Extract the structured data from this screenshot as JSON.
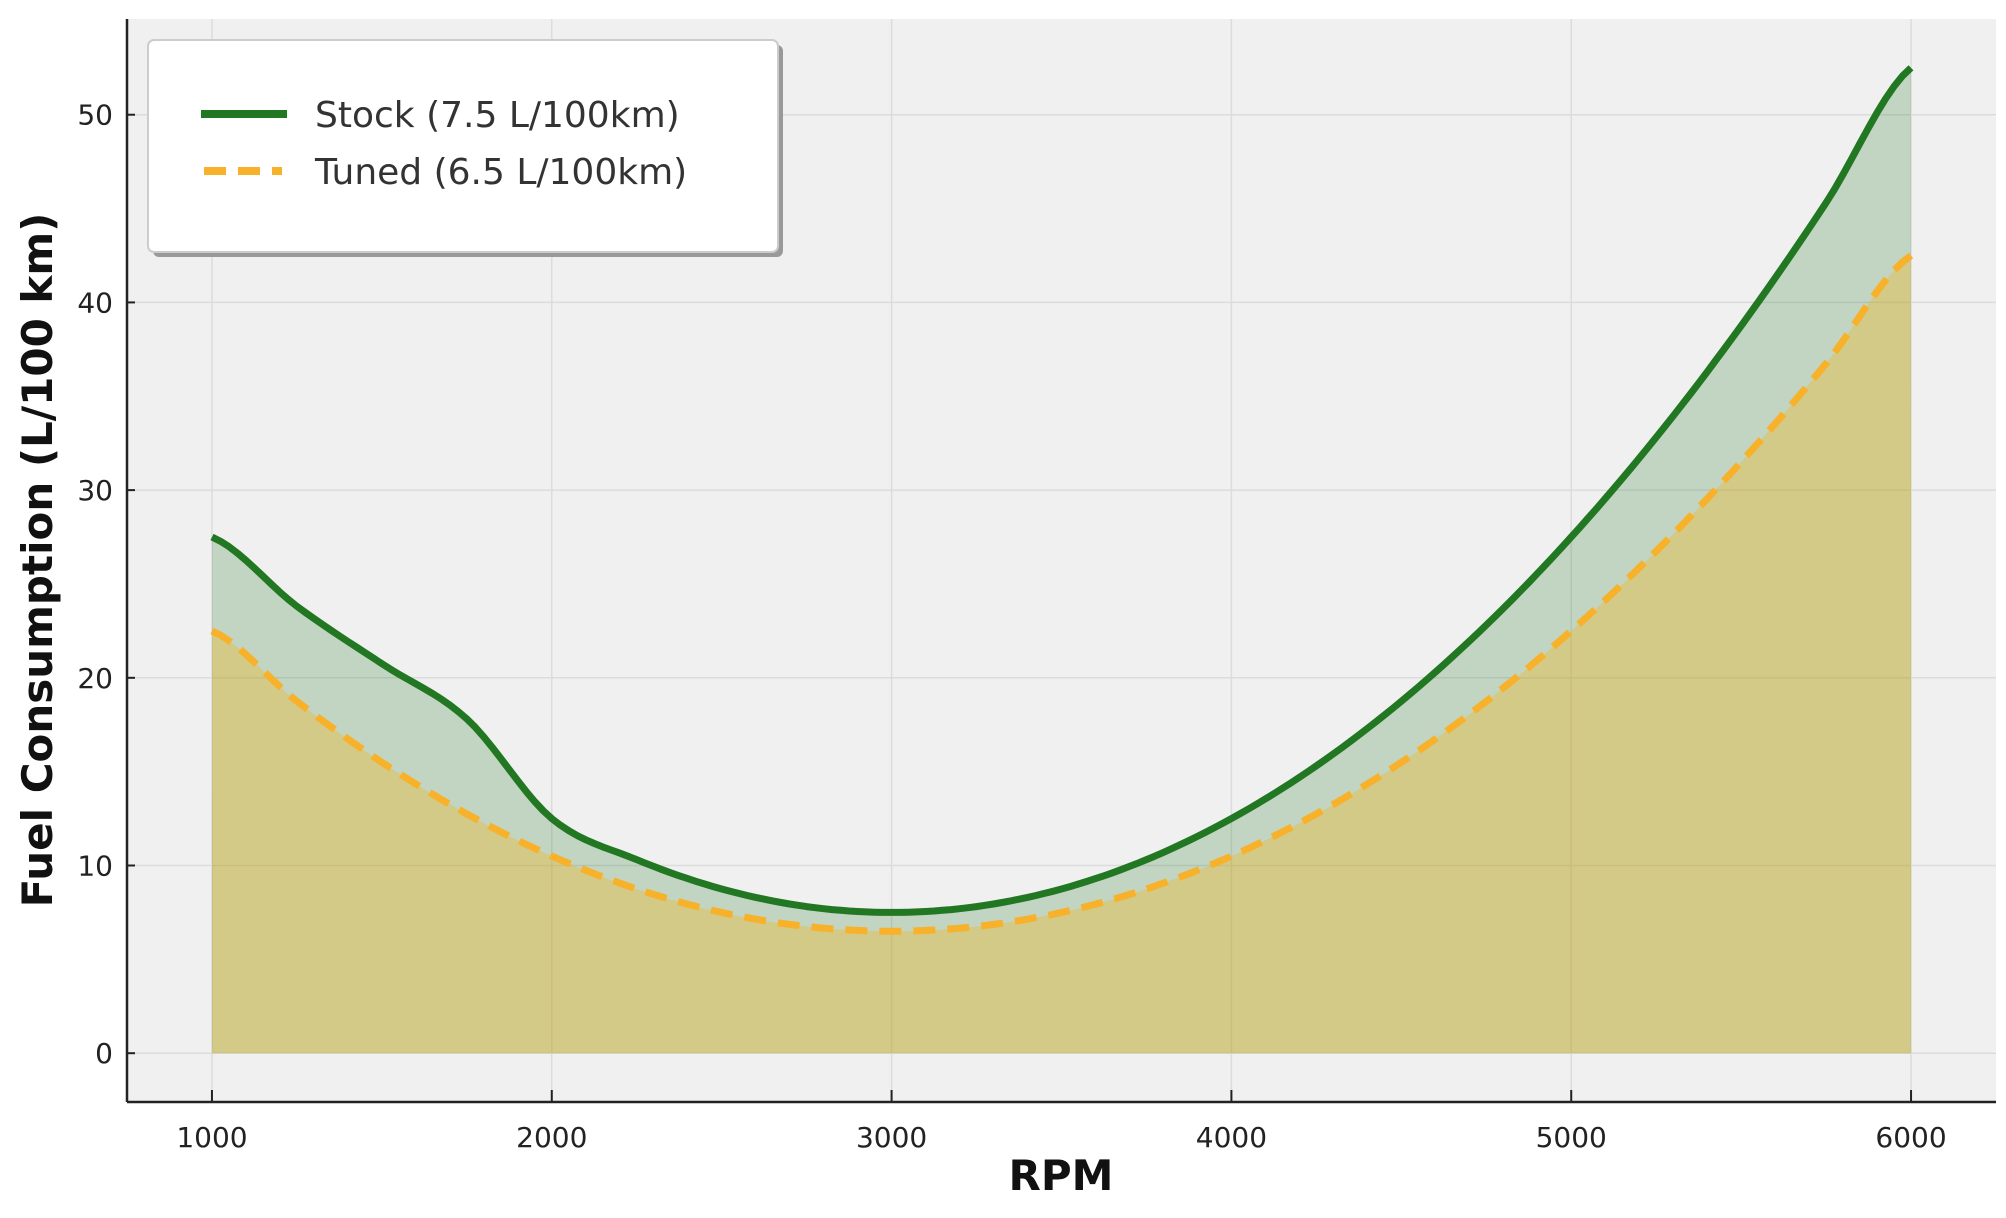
{
  "chart_data": {
    "type": "area",
    "title": "",
    "xlabel": "RPM",
    "ylabel": "Fuel Consumption (L/100 km)",
    "xlim": [
      750,
      6250
    ],
    "ylim": [
      -2.6,
      55.1
    ],
    "xticks": [
      1000,
      2000,
      3000,
      4000,
      5000,
      6000
    ],
    "yticks": [
      0,
      10,
      20,
      30,
      40,
      50
    ],
    "grid": true,
    "legend_placement": "top-left",
    "x": [
      1000,
      1250,
      1500,
      1750,
      2000,
      2250,
      2500,
      2750,
      3000,
      3250,
      3500,
      3750,
      4000,
      4250,
      4500,
      4750,
      5000,
      5250,
      5500,
      5750,
      6000
    ],
    "series": [
      {
        "name": "Stock (7.5 L/100km)",
        "color": "#227722",
        "fill": "#227722",
        "style": "solid",
        "values": [
          27.5,
          23.8125,
          20.75,
          17.8125,
          12.5,
          10.3125,
          8.75,
          7.8125,
          7.5,
          7.8125,
          8.75,
          10.3125,
          12.5,
          15.3125,
          18.75,
          22.8125,
          27.5,
          32.8125,
          38.75,
          45.3125,
          52.5
        ]
      },
      {
        "name": "Tuned (6.5 L/100km)",
        "color": "#f8b12a",
        "fill": "#ffb300",
        "style": "dashed",
        "values": [
          22.5,
          18.75,
          15.5,
          12.75,
          10.5,
          8.75,
          7.5,
          6.75,
          6.5,
          6.75,
          7.5,
          8.75,
          10.5,
          12.75,
          15.5,
          18.75,
          22.5,
          26.75,
          31.5,
          36.75,
          42.5
        ]
      }
    ]
  }
}
